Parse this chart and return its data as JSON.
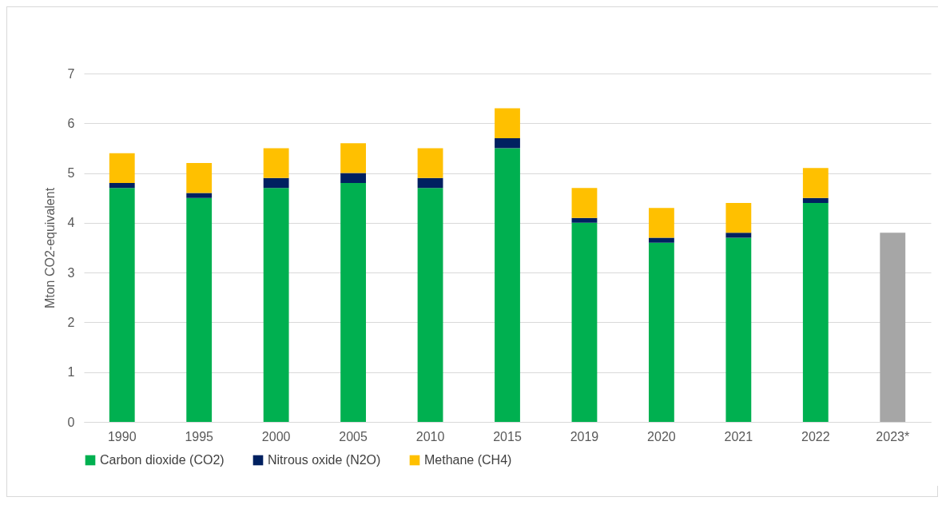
{
  "chart_data": {
    "type": "bar",
    "stacked": true,
    "ylabel": "Mton CO2-equivalent",
    "categories": [
      "1990",
      "1995",
      "2000",
      "2005",
      "2010",
      "2015",
      "2019",
      "2020",
      "2021",
      "2022",
      "2023*"
    ],
    "series": [
      {
        "name": "Carbon dioxide (CO2)",
        "color": "#00b050",
        "values": [
          4.7,
          4.5,
          4.7,
          4.8,
          4.7,
          5.5,
          4.0,
          3.6,
          3.7,
          4.4,
          null
        ]
      },
      {
        "name": "Nitrous oxide (N2O)",
        "color": "#002060",
        "values": [
          0.1,
          0.1,
          0.2,
          0.2,
          0.2,
          0.2,
          0.1,
          0.1,
          0.1,
          0.1,
          null
        ]
      },
      {
        "name": "Methane (CH4)",
        "color": "#ffc000",
        "values": [
          0.6,
          0.6,
          0.6,
          0.6,
          0.6,
          0.6,
          0.6,
          0.6,
          0.6,
          0.6,
          null
        ]
      },
      {
        "color": "#a6a6a6",
        "values": [
          null,
          null,
          null,
          null,
          null,
          null,
          null,
          null,
          null,
          null,
          3.8
        ]
      }
    ],
    "ylim": [
      0,
      7
    ],
    "yticks": [
      0,
      1,
      2,
      3,
      4,
      5,
      6,
      7
    ],
    "grid": "y",
    "legend": "bottom"
  }
}
